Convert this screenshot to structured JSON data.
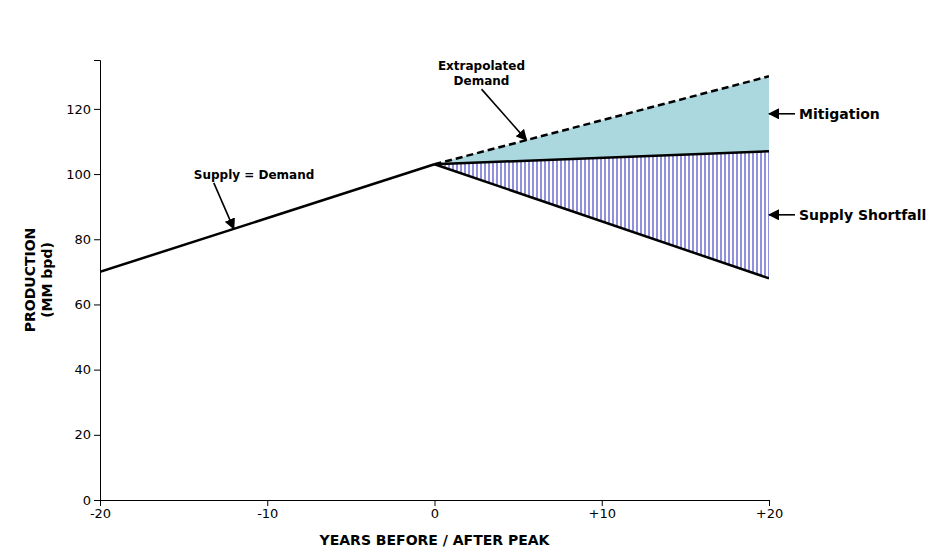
{
  "chart_data": {
    "type": "line",
    "xlabel": "YEARS BEFORE / AFTER PEAK",
    "ylabel": "PRODUCTION\n(MM bpd)",
    "xlim": [
      -20,
      20
    ],
    "ylim": [
      0,
      135
    ],
    "xticks": [
      -20,
      -10,
      0,
      {
        "value": 10,
        "label": "+10"
      },
      {
        "value": 20,
        "label": "+20"
      }
    ],
    "yticks": [
      0,
      20,
      40,
      60,
      80,
      100,
      120
    ],
    "grid": false,
    "series": [
      {
        "type": "area",
        "color": "#aad8de",
        "x": [
          0,
          20
        ],
        "values": [
          103,
          130
        ],
        "low": [
          103,
          107
        ]
      },
      {
        "type": "area",
        "color": "#2222bb",
        "line_style": "hatched",
        "x": [
          0,
          20
        ],
        "values": [
          103,
          107
        ],
        "low": [
          103,
          68
        ]
      },
      {
        "type": "line",
        "color": "#000000",
        "line_style": "solid",
        "x": [
          -20,
          0
        ],
        "values": [
          70,
          103
        ]
      },
      {
        "type": "line",
        "color": "#000000",
        "line_style": "solid",
        "x": [
          0,
          20
        ],
        "values": [
          103,
          68
        ]
      },
      {
        "type": "line",
        "color": "#000000",
        "line_style": "solid",
        "x": [
          0,
          20
        ],
        "values": [
          103,
          107
        ]
      },
      {
        "type": "line",
        "color": "#000000",
        "line_style": "dashed",
        "x": [
          0,
          20
        ],
        "values": [
          103,
          130
        ]
      }
    ],
    "annotations": [
      "Supply = Demand",
      "Extrapolated\nDemand",
      "Mitigation",
      "Supply Shortfall"
    ]
  }
}
